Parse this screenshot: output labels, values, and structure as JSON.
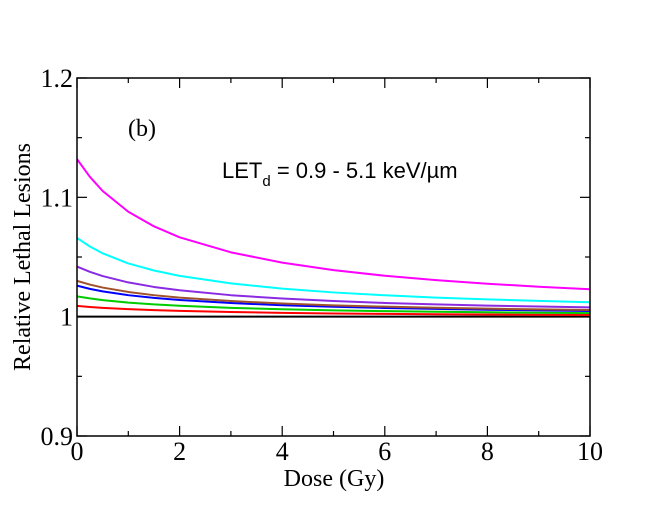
{
  "chart_data": {
    "type": "line",
    "title": "",
    "panel_label": "(b)",
    "annotation": {
      "main": "LET",
      "subscript": "d",
      "rest": " = 0.9 - 5.1 keV/µm"
    },
    "xlabel": "Dose (Gy)",
    "ylabel": "Relative Lethal Lesions",
    "xlim": [
      0,
      10
    ],
    "ylim": [
      0.9,
      1.2
    ],
    "xticks": [
      0,
      2,
      4,
      6,
      8,
      10
    ],
    "xtick_labels": [
      "0",
      "2",
      "4",
      "6",
      "8",
      "10"
    ],
    "yticks": [
      0.9,
      1.0,
      1.1,
      1.2
    ],
    "ytick_labels": [
      "0.9",
      "1",
      "1.1",
      "1.2"
    ],
    "x": [
      0,
      0.25,
      0.5,
      1,
      1.5,
      2,
      3,
      4,
      5,
      6,
      7,
      8,
      9,
      10
    ],
    "series": [
      {
        "name": "black",
        "color": "#000000",
        "values": [
          1.0,
          1.0,
          1.0,
          1.0,
          1.0,
          1.0,
          1.0,
          1.0,
          1.0,
          1.0,
          1.0,
          1.0,
          1.0,
          1.0
        ]
      },
      {
        "name": "red",
        "color": "#ff0000",
        "values": [
          1.009,
          1.0081,
          1.0074,
          1.0063,
          1.0055,
          1.0049,
          1.0039,
          1.0032,
          1.0027,
          1.0023,
          1.002,
          1.0018,
          1.0016,
          1.0014
        ]
      },
      {
        "name": "green",
        "color": "#00cc00",
        "values": [
          1.017,
          1.0153,
          1.0139,
          1.0118,
          1.0103,
          1.0091,
          1.0074,
          1.0062,
          1.0053,
          1.0046,
          1.0041,
          1.0037,
          1.0033,
          1.003
        ]
      },
      {
        "name": "blue",
        "color": "#0000ff",
        "values": [
          1.026,
          1.0233,
          1.0212,
          1.018,
          1.0157,
          1.014,
          1.0114,
          1.0096,
          1.0083,
          1.0073,
          1.0065,
          1.0058,
          1.0053,
          1.0048
        ]
      },
      {
        "name": "brown",
        "color": "#a0522d",
        "values": [
          1.03,
          1.0269,
          1.0244,
          1.0207,
          1.018,
          1.016,
          1.0131,
          1.011,
          1.0095,
          1.0084,
          1.0075,
          1.0067,
          1.0061,
          1.0056
        ]
      },
      {
        "name": "violet",
        "color": "#8a2be2",
        "values": [
          1.042,
          1.0376,
          1.034,
          1.0287,
          1.0249,
          1.0221,
          1.018,
          1.0152,
          1.0131,
          1.0115,
          1.0103,
          1.0093,
          1.0085,
          1.0078
        ]
      },
      {
        "name": "cyan",
        "color": "#00ffff",
        "values": [
          1.066,
          1.0588,
          1.0531,
          1.0446,
          1.0387,
          1.0342,
          1.0279,
          1.0235,
          1.0203,
          1.0179,
          1.016,
          1.0145,
          1.0132,
          1.0121
        ]
      },
      {
        "name": "magenta",
        "color": "#ff00ff",
        "values": [
          1.132,
          1.1172,
          1.1053,
          1.0879,
          1.0757,
          1.0665,
          1.0539,
          1.0453,
          1.039,
          1.0343,
          1.0306,
          1.0276,
          1.0251,
          1.023
        ]
      }
    ],
    "grid": false,
    "legend": "none"
  }
}
